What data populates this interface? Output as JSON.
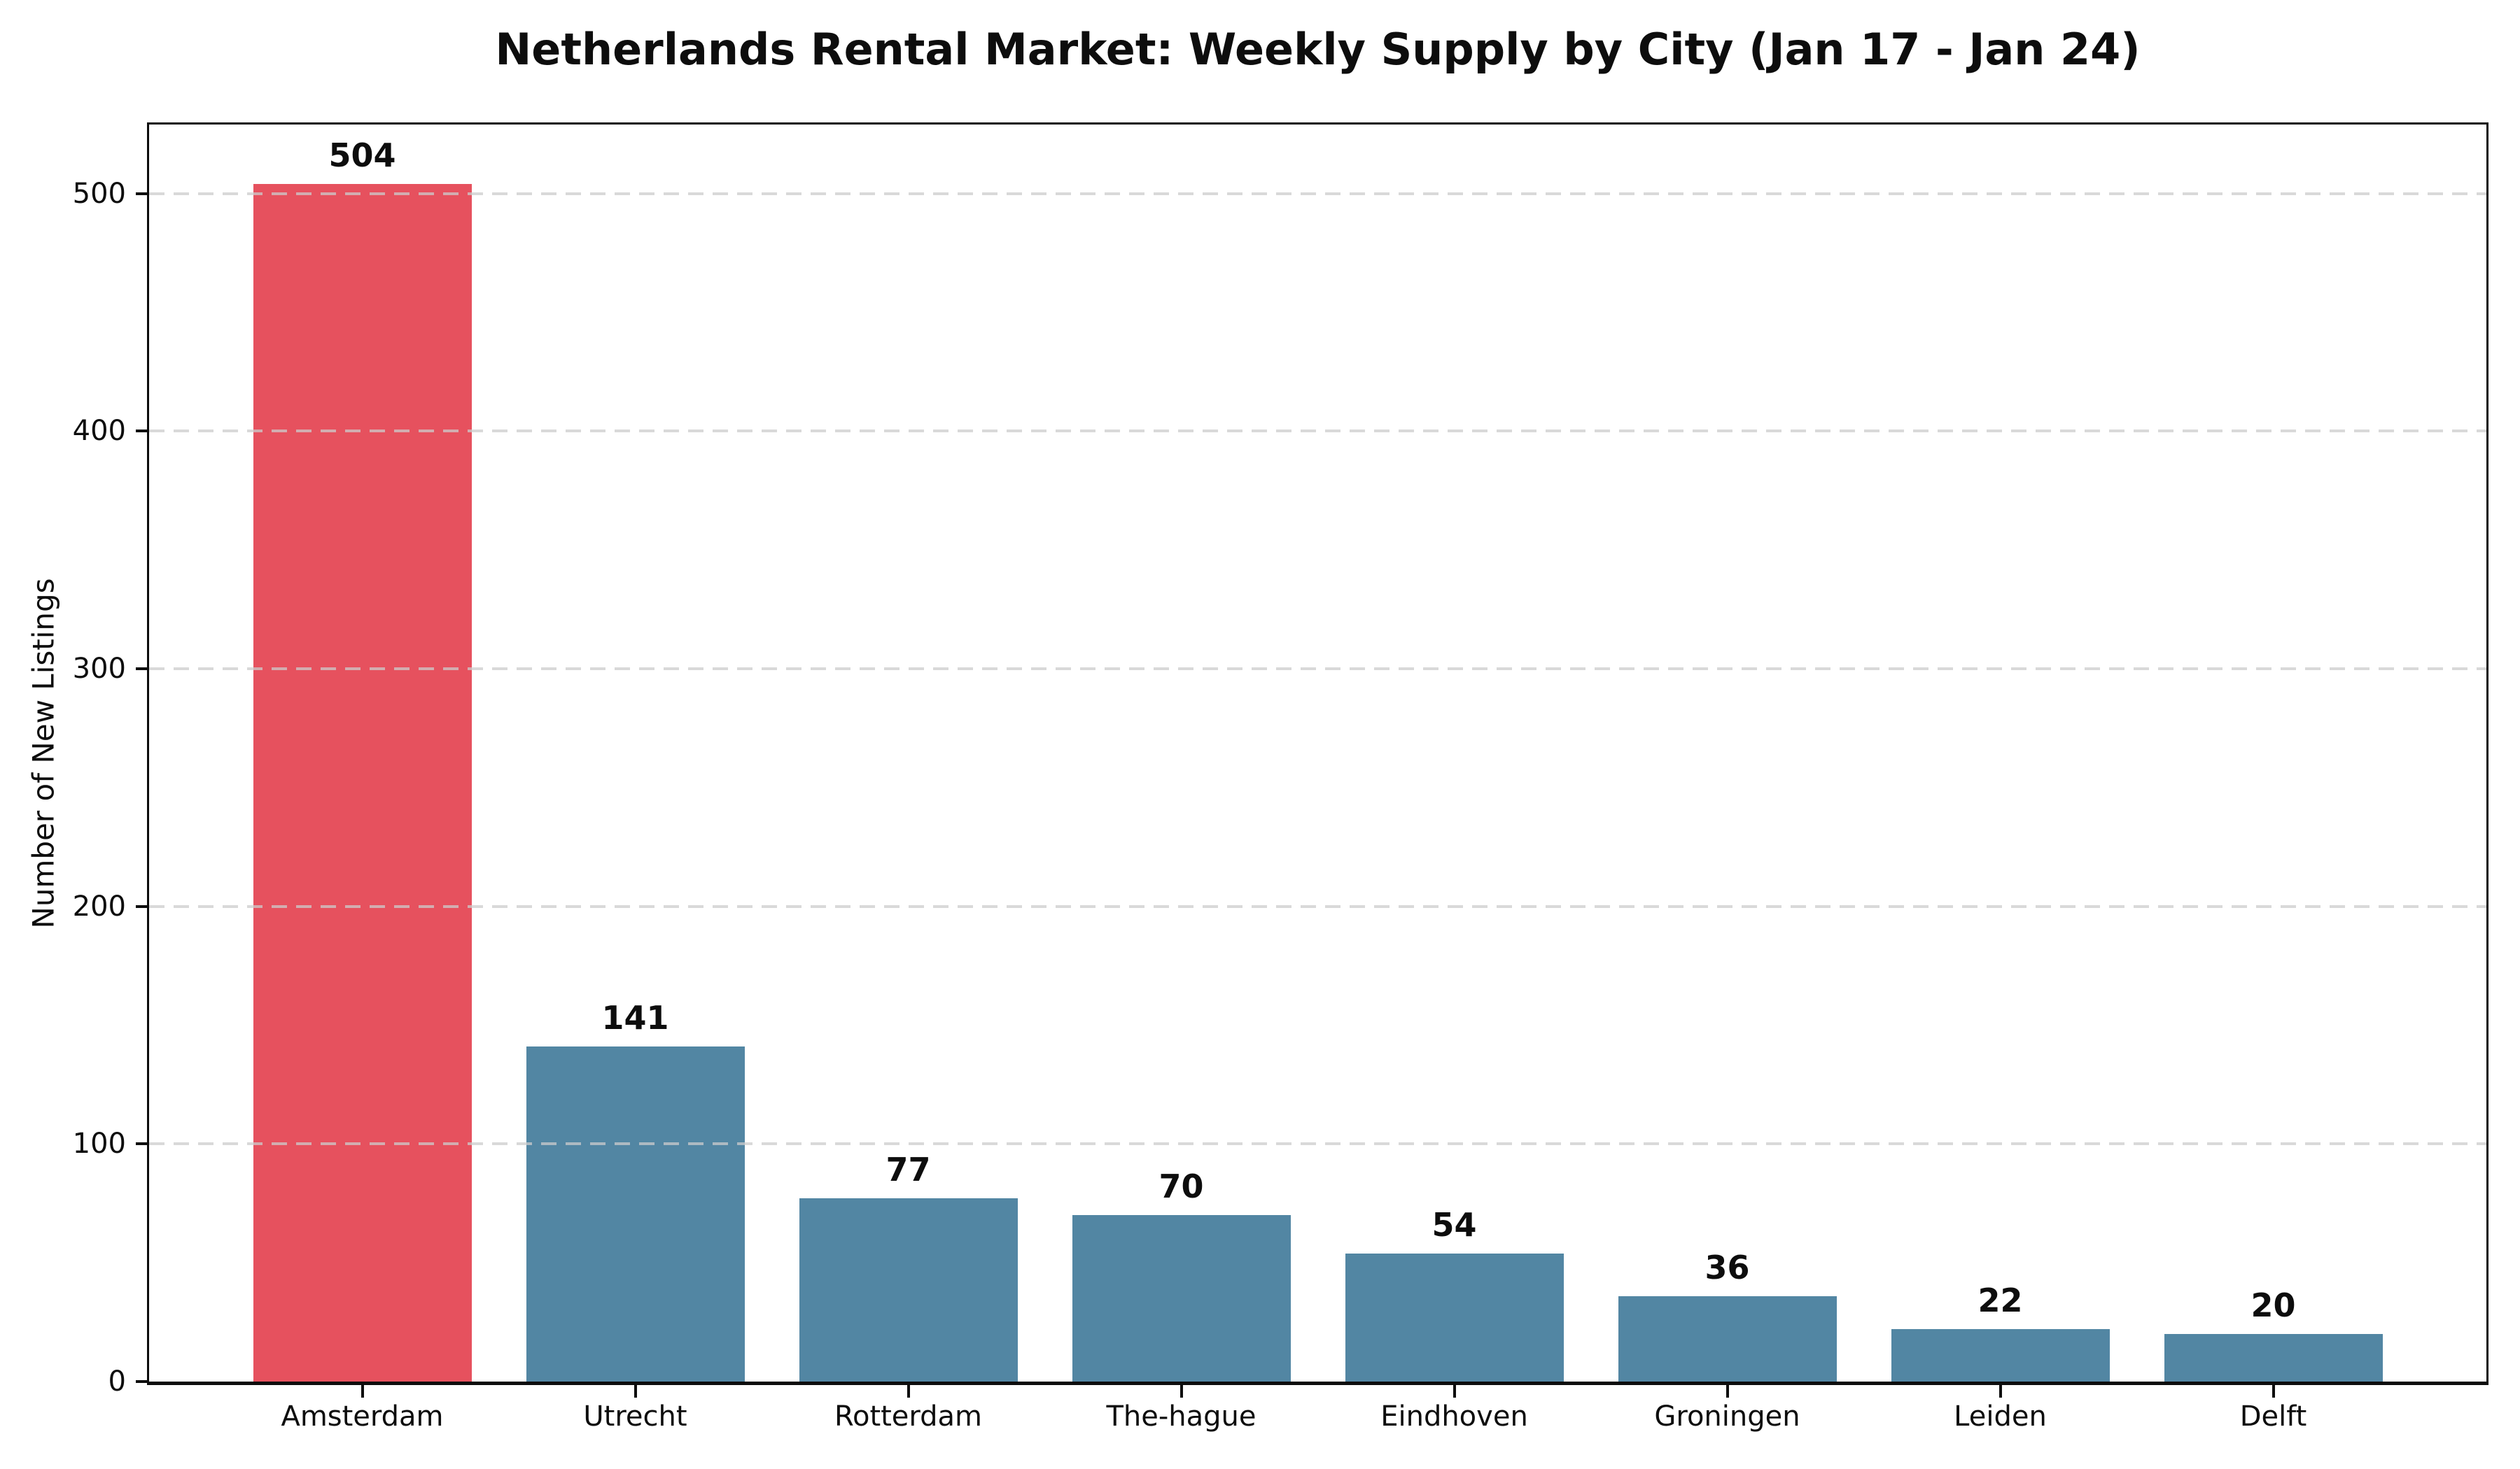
{
  "title": "Netherlands Rental Market: Weekly Supply by City (Jan 17 - Jan 24)",
  "chart_data": {
    "type": "bar",
    "title": "Netherlands Rental Market: Weekly Supply by City (Jan 17 - Jan 24)",
    "xlabel": "",
    "ylabel": "Number of New Listings",
    "categories": [
      "Amsterdam",
      "Utrecht",
      "Rotterdam",
      "The-hague",
      "Eindhoven",
      "Groningen",
      "Leiden",
      "Delft"
    ],
    "values": [
      504,
      141,
      77,
      70,
      54,
      36,
      22,
      20
    ],
    "value_labels": [
      "504",
      "141",
      "77",
      "70",
      "54",
      "36",
      "22",
      "20"
    ],
    "highlight_index": 0,
    "highlight_color": "#e6515e",
    "bar_color": "#5286a3",
    "yticks": [
      0,
      100,
      200,
      300,
      400,
      500
    ],
    "ylim": [
      0,
      529
    ],
    "grid": "horizontal",
    "grid_style": "dashed",
    "grid_color": "#cccccc",
    "legend": "none",
    "axis_color": "#0d0d0d"
  }
}
